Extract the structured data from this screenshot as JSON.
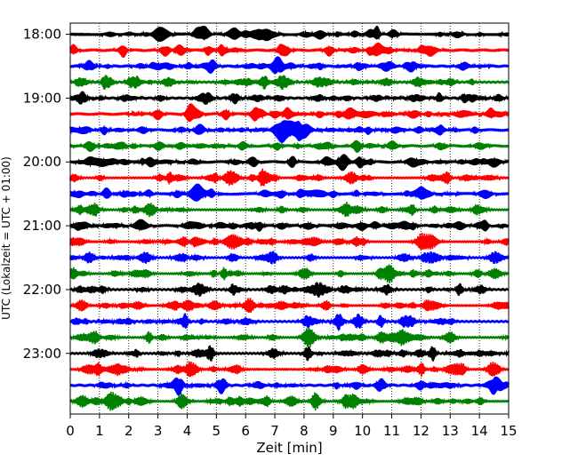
{
  "chart_data": {
    "type": "line",
    "title": "",
    "xlabel": "Zeit  [min]",
    "ylabel": "UTC (Lokalzeit = UTC + 01:00)",
    "xlim": [
      0,
      15
    ],
    "x_ticks": [
      "0",
      "1",
      "2",
      "3",
      "4",
      "5",
      "6",
      "7",
      "8",
      "9",
      "10",
      "11",
      "12",
      "13",
      "14",
      "15"
    ],
    "y_ticks": [
      "18:00",
      "19:00",
      "20:00",
      "21:00",
      "22:00",
      "23:00"
    ],
    "grid": "vertical dotted",
    "trace_colors": [
      "#000000",
      "#ff0000",
      "#0000ff",
      "#008000"
    ],
    "traces": [
      {
        "start": "18:00",
        "color": "#000000"
      },
      {
        "start": "18:15",
        "color": "#ff0000"
      },
      {
        "start": "18:30",
        "color": "#0000ff"
      },
      {
        "start": "18:45",
        "color": "#008000"
      },
      {
        "start": "19:00",
        "color": "#000000"
      },
      {
        "start": "19:15",
        "color": "#ff0000"
      },
      {
        "start": "19:30",
        "color": "#0000ff",
        "event_at_min": 7.5
      },
      {
        "start": "19:45",
        "color": "#008000"
      },
      {
        "start": "20:00",
        "color": "#000000"
      },
      {
        "start": "20:15",
        "color": "#ff0000"
      },
      {
        "start": "20:30",
        "color": "#0000ff"
      },
      {
        "start": "20:45",
        "color": "#008000"
      },
      {
        "start": "21:00",
        "color": "#000000"
      },
      {
        "start": "21:15",
        "color": "#ff0000"
      },
      {
        "start": "21:30",
        "color": "#0000ff"
      },
      {
        "start": "21:45",
        "color": "#008000"
      },
      {
        "start": "22:00",
        "color": "#000000"
      },
      {
        "start": "22:15",
        "color": "#ff0000"
      },
      {
        "start": "22:30",
        "color": "#0000ff"
      },
      {
        "start": "22:45",
        "color": "#008000"
      },
      {
        "start": "23:00",
        "color": "#000000"
      },
      {
        "start": "23:15",
        "color": "#ff0000"
      },
      {
        "start": "23:30",
        "color": "#0000ff"
      },
      {
        "start": "23:45",
        "color": "#008000"
      }
    ]
  }
}
